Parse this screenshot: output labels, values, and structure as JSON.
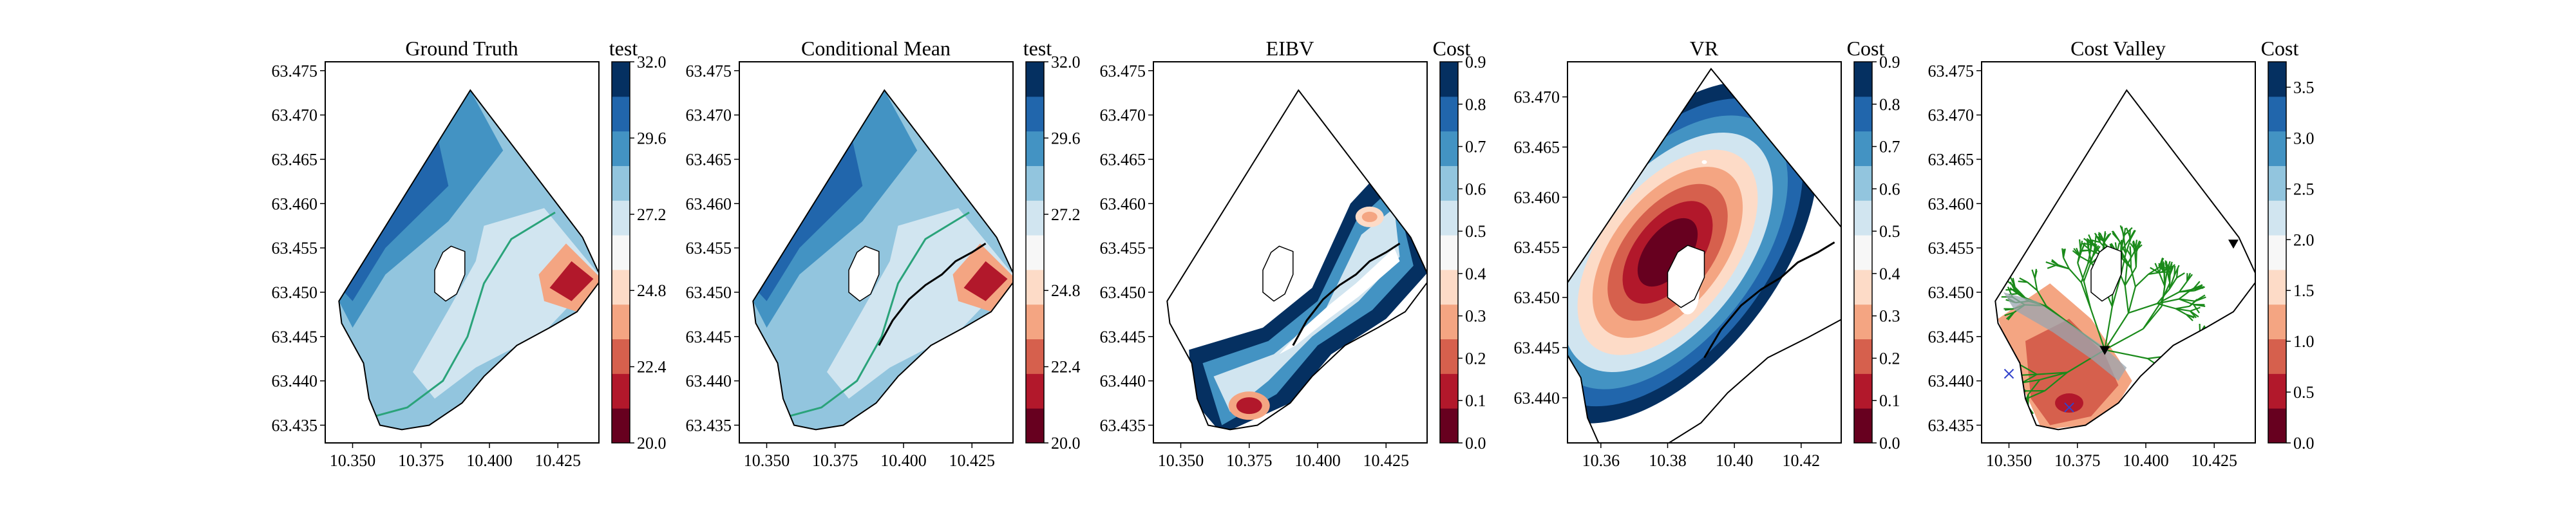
{
  "chart_data": [
    {
      "type": "heatmap",
      "title": "Ground Truth",
      "xlim": [
        10.34,
        10.44
      ],
      "ylim": [
        63.433,
        63.476
      ],
      "xticks": [
        "10.350",
        "10.375",
        "10.400",
        "10.425"
      ],
      "yticks": [
        "63.435",
        "63.440",
        "63.445",
        "63.450",
        "63.455",
        "63.460",
        "63.465",
        "63.470",
        "63.475"
      ],
      "colorbar": {
        "label": "test",
        "ticks": [
          "20.0",
          "22.4",
          "24.8",
          "27.2",
          "29.6",
          "32.0"
        ],
        "range": [
          20.0,
          32.0
        ],
        "cmap": "RdBu"
      },
      "has_path": false,
      "has_front": true
    },
    {
      "type": "heatmap",
      "title": "Conditional Mean",
      "xlim": [
        10.34,
        10.44
      ],
      "ylim": [
        63.433,
        63.476
      ],
      "xticks": [
        "10.350",
        "10.375",
        "10.400",
        "10.425"
      ],
      "yticks": [
        "63.435",
        "63.440",
        "63.445",
        "63.450",
        "63.455",
        "63.460",
        "63.465",
        "63.470",
        "63.475"
      ],
      "colorbar": {
        "label": "test",
        "ticks": [
          "20.0",
          "22.4",
          "24.8",
          "27.2",
          "29.6",
          "32.0"
        ],
        "range": [
          20.0,
          32.0
        ],
        "cmap": "RdBu"
      },
      "has_path": true,
      "has_front": true
    },
    {
      "type": "heatmap",
      "title": "EIBV",
      "xlim": [
        10.34,
        10.44
      ],
      "ylim": [
        63.433,
        63.476
      ],
      "xticks": [
        "10.350",
        "10.375",
        "10.400",
        "10.425"
      ],
      "yticks": [
        "63.435",
        "63.440",
        "63.445",
        "63.450",
        "63.455",
        "63.460",
        "63.465",
        "63.470",
        "63.475"
      ],
      "colorbar": {
        "label": "Cost",
        "ticks": [
          "0.0",
          "0.1",
          "0.2",
          "0.3",
          "0.4",
          "0.5",
          "0.6",
          "0.7",
          "0.8",
          "0.9"
        ],
        "range": [
          0.0,
          0.9
        ],
        "cmap": "RdBu"
      },
      "has_path": true,
      "has_front": false
    },
    {
      "type": "heatmap",
      "title": "VR",
      "xlim": [
        10.35,
        10.432
      ],
      "ylim": [
        63.4355,
        63.4735
      ],
      "xticks": [
        "10.36",
        "10.38",
        "10.40",
        "10.42"
      ],
      "yticks": [
        "63.440",
        "63.445",
        "63.450",
        "63.455",
        "63.460",
        "63.465",
        "63.470"
      ],
      "colorbar": {
        "label": "Cost",
        "ticks": [
          "0.0",
          "0.1",
          "0.2",
          "0.3",
          "0.4",
          "0.5",
          "0.6",
          "0.7",
          "0.8",
          "0.9"
        ],
        "range": [
          0.0,
          0.9
        ],
        "cmap": "RdBu"
      },
      "has_path": true,
      "has_front": false
    },
    {
      "type": "heatmap",
      "title": "Cost Valley",
      "xlim": [
        10.34,
        10.44
      ],
      "ylim": [
        63.433,
        63.476
      ],
      "xticks": [
        "10.350",
        "10.375",
        "10.400",
        "10.425"
      ],
      "yticks": [
        "63.435",
        "63.440",
        "63.445",
        "63.450",
        "63.455",
        "63.460",
        "63.465",
        "63.470",
        "63.475"
      ],
      "colorbar": {
        "label": "Cost",
        "ticks": [
          "0.0",
          "0.5",
          "1.0",
          "1.5",
          "2.0",
          "2.5",
          "3.0",
          "3.5"
        ],
        "range": [
          0.0,
          3.75
        ],
        "cmap": "RdBu"
      },
      "has_path": true,
      "has_front": false,
      "tree_color": "#1a8a1a"
    }
  ],
  "colors": {
    "cmap_RdBu": [
      "#67001f",
      "#b2182b",
      "#d6604d",
      "#f4a582",
      "#fddbc7",
      "#f7f7f7",
      "#d1e5f0",
      "#92c5de",
      "#4393c3",
      "#2166ac",
      "#053061"
    ],
    "front": "#2aa37a",
    "path": "#000000"
  }
}
